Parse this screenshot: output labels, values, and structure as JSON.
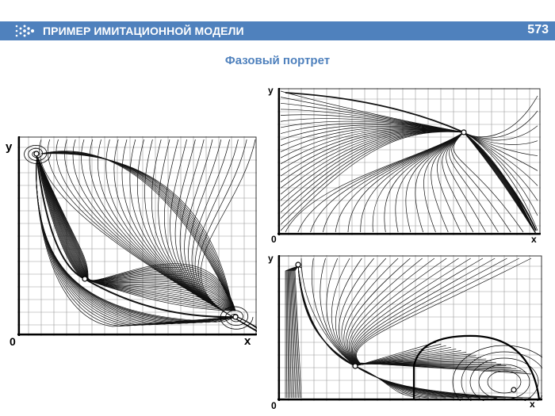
{
  "header": {
    "title": "ПРИМЕР ИМИТАЦИОННОЙ МОДЕЛИ",
    "page_number": "573",
    "bar_color": "#4f81bd",
    "logo_icon": "dots-arrow-icon"
  },
  "slide": {
    "subtitle": "Фазовый портрет",
    "accent_color": "#4f81bd"
  },
  "portraits": {
    "left": {
      "y_label": "y",
      "x_label": "x",
      "origin_label": "0"
    },
    "top_right": {
      "y_label": "y",
      "x_label": "x",
      "origin_label": "0"
    },
    "bottom_right": {
      "y_label": "y",
      "x_label": "x",
      "origin_label": "0"
    }
  }
}
